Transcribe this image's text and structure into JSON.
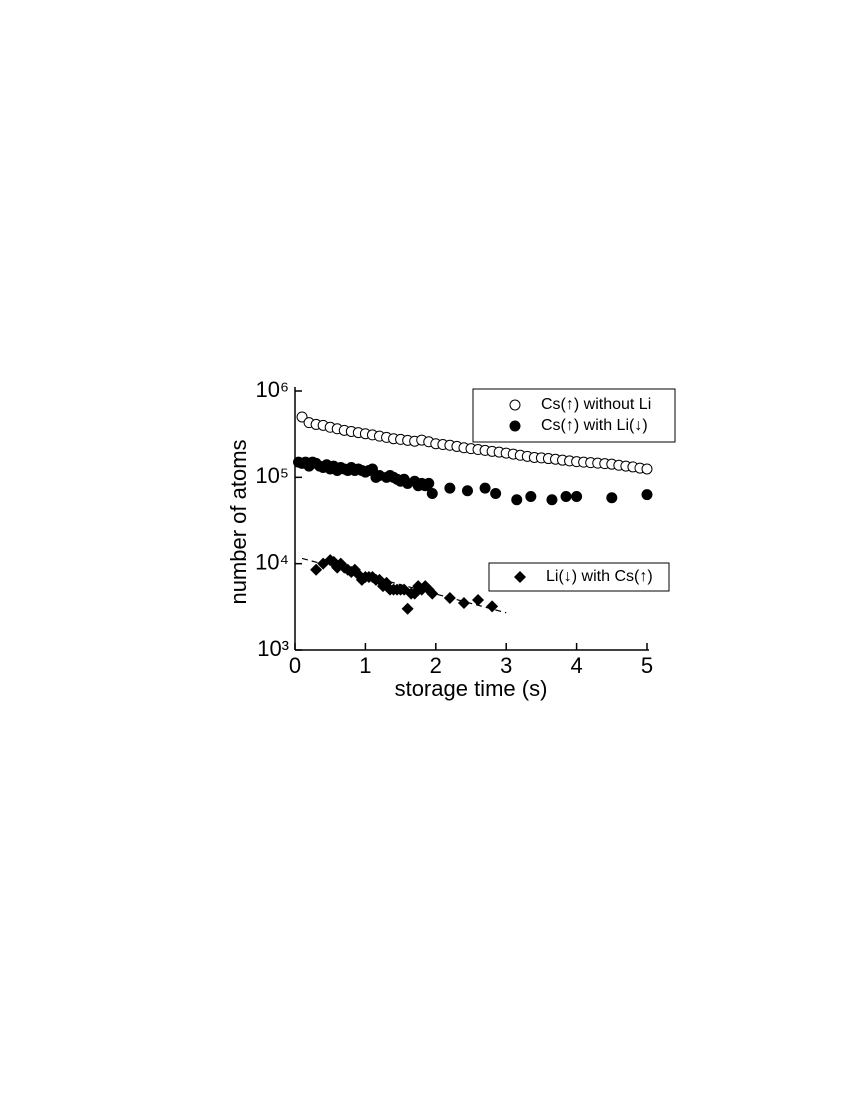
{
  "chart_data": {
    "type": "scatter",
    "xlabel": "storage time (s)",
    "ylabel": "number of atoms",
    "xlim": [
      0,
      5
    ],
    "xticks": [
      0,
      1,
      2,
      3,
      4,
      5
    ],
    "ylim": [
      1000,
      1000000
    ],
    "log_y": true,
    "yticks": [
      {
        "value": 1000,
        "label": "10³"
      },
      {
        "value": 10000,
        "label": "10⁴"
      },
      {
        "value": 100000,
        "label": "10⁵"
      },
      {
        "value": 1000000,
        "label": "10⁶"
      }
    ],
    "series": [
      {
        "name": "Cs(↑) without Li",
        "color": "#000000",
        "marker": "open-circle",
        "x": [
          0.1,
          0.2,
          0.3,
          0.4,
          0.5,
          0.6,
          0.7,
          0.8,
          0.9,
          1.0,
          1.1,
          1.2,
          1.3,
          1.4,
          1.5,
          1.6,
          1.7,
          1.8,
          1.9,
          2.0,
          2.1,
          2.2,
          2.3,
          2.4,
          2.5,
          2.6,
          2.7,
          2.8,
          2.9,
          3.0,
          3.1,
          3.2,
          3.3,
          3.4,
          3.5,
          3.6,
          3.7,
          3.8,
          3.9,
          4.0,
          4.1,
          4.2,
          4.3,
          4.4,
          4.5,
          4.6,
          4.7,
          4.8,
          4.9,
          5.0
        ],
        "values": [
          500000,
          430000,
          410000,
          400000,
          380000,
          365000,
          350000,
          340000,
          330000,
          320000,
          310000,
          300000,
          290000,
          280000,
          275000,
          268000,
          262000,
          270000,
          258000,
          245000,
          240000,
          235000,
          228000,
          220000,
          215000,
          210000,
          205000,
          200000,
          196000,
          191000,
          186000,
          180000,
          175000,
          170000,
          168000,
          165000,
          162000,
          158000,
          155000,
          152000,
          150000,
          148000,
          146000,
          144000,
          142000,
          138000,
          135000,
          132000,
          128000,
          125000
        ]
      },
      {
        "name": "Cs(↑) with Li(↓)",
        "color": "#000000",
        "marker": "filled-circle",
        "x": [
          0.05,
          0.1,
          0.15,
          0.2,
          0.25,
          0.3,
          0.35,
          0.4,
          0.45,
          0.5,
          0.55,
          0.6,
          0.65,
          0.7,
          0.75,
          0.8,
          0.85,
          0.9,
          0.95,
          1.0,
          1.05,
          1.1,
          1.15,
          1.2,
          1.3,
          1.35,
          1.4,
          1.45,
          1.5,
          1.55,
          1.6,
          1.7,
          1.75,
          1.8,
          1.85,
          1.9,
          1.95,
          2.2,
          2.45,
          2.7,
          2.85,
          3.15,
          3.35,
          3.65,
          3.85,
          4.0,
          4.5,
          5.0
        ],
        "values": [
          150000,
          145000,
          150000,
          135000,
          150000,
          145000,
          135000,
          130000,
          140000,
          125000,
          135000,
          120000,
          130000,
          125000,
          120000,
          130000,
          120000,
          125000,
          120000,
          115000,
          120000,
          125000,
          100000,
          105000,
          100000,
          105000,
          100000,
          95000,
          90000,
          95000,
          85000,
          90000,
          80000,
          85000,
          80000,
          85000,
          65000,
          75000,
          70000,
          75000,
          65000,
          55000,
          60000,
          55000,
          60000,
          60000,
          58000,
          63000
        ]
      },
      {
        "name": "Li(↓) with Cs(↑)",
        "color": "#000000",
        "marker": "diamond",
        "x": [
          0.3,
          0.4,
          0.5,
          0.55,
          0.6,
          0.65,
          0.7,
          0.75,
          0.8,
          0.85,
          0.9,
          0.95,
          1.0,
          1.05,
          1.1,
          1.15,
          1.2,
          1.25,
          1.3,
          1.35,
          1.4,
          1.45,
          1.5,
          1.55,
          1.6,
          1.65,
          1.7,
          1.75,
          1.8,
          1.85,
          1.9,
          1.95,
          2.2,
          2.4,
          2.6,
          2.8
        ],
        "values": [
          8500,
          10000,
          11000,
          10500,
          9000,
          10000,
          9000,
          8500,
          8000,
          8500,
          7500,
          6500,
          7000,
          7000,
          7000,
          6500,
          6500,
          5500,
          6000,
          5000,
          5000,
          5000,
          5000,
          5000,
          3000,
          4500,
          4500,
          5500,
          5000,
          5500,
          5000,
          4500,
          4000,
          3500,
          3800,
          3200
        ]
      }
    ],
    "fit": {
      "x": [
        0.1,
        3.0
      ],
      "values": [
        11500,
        2700
      ],
      "color": "#000000",
      "dash": true
    }
  }
}
